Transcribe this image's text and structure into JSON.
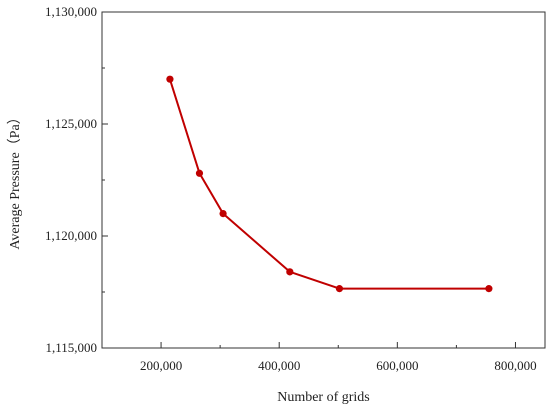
{
  "chart_data": {
    "type": "line",
    "title": "",
    "xlabel": "Number of grids",
    "ylabel": "Average Pressure（Pa）",
    "xlim": [
      100000,
      850000
    ],
    "ylim": [
      1115000,
      1130000
    ],
    "xticks": [
      200000,
      400000,
      600000,
      800000
    ],
    "xtick_labels": [
      "200,000",
      "400,000",
      "600,000",
      "800,000"
    ],
    "yticks": [
      1115000,
      1120000,
      1125000,
      1130000
    ],
    "ytick_labels": [
      "1,115,000",
      "1,120,000",
      "1,125,000",
      "1,130,000"
    ],
    "grid": false,
    "line_color": "#c00000",
    "series": [
      {
        "x": [
          215000,
          265000,
          305000,
          418000,
          502000,
          755000
        ],
        "y": [
          1127000,
          1122800,
          1121000,
          1118400,
          1117650,
          1117650
        ]
      }
    ]
  }
}
